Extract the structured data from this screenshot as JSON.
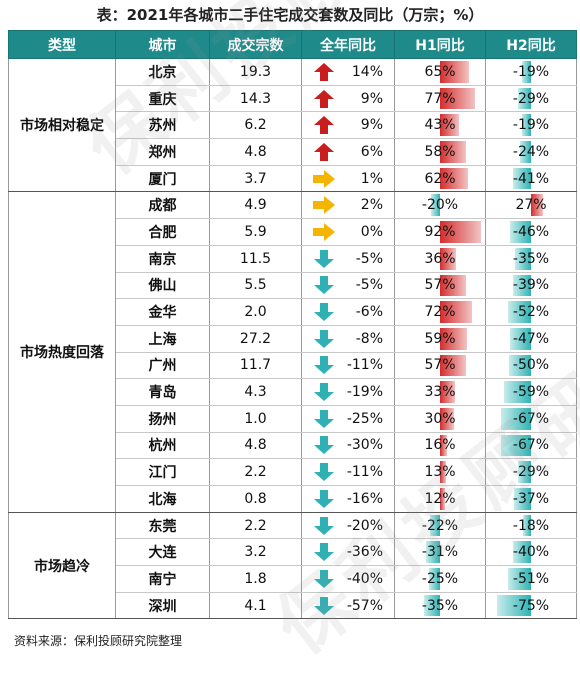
{
  "title": "表：2021年各城市二手住宅成交套数及同比（万宗；%）",
  "headers": [
    "类型",
    "城市",
    "成交宗数",
    "全年同比",
    "H1同比",
    "H2同比"
  ],
  "groups": [
    {
      "category": "市场相对稳定",
      "rows": [
        {
          "city": "北京",
          "volume": "19.3",
          "yoy": "14%",
          "yoy_icon": "up-arrow-icon",
          "h1": "65%",
          "h1_value": 65,
          "h2": "-19%",
          "h2_value": -19
        },
        {
          "city": "重庆",
          "volume": "14.3",
          "yoy": "9%",
          "yoy_icon": "up-arrow-icon",
          "h1": "77%",
          "h1_value": 77,
          "h2": "-29%",
          "h2_value": -29
        },
        {
          "city": "苏州",
          "volume": "6.2",
          "yoy": "9%",
          "yoy_icon": "up-arrow-icon",
          "h1": "43%",
          "h1_value": 43,
          "h2": "-19%",
          "h2_value": -19
        },
        {
          "city": "郑州",
          "volume": "4.8",
          "yoy": "6%",
          "yoy_icon": "up-arrow-icon",
          "h1": "58%",
          "h1_value": 58,
          "h2": "-24%",
          "h2_value": -24
        },
        {
          "city": "厦门",
          "volume": "3.7",
          "yoy": "1%",
          "yoy_icon": "right-arrow-icon",
          "h1": "62%",
          "h1_value": 62,
          "h2": "-41%",
          "h2_value": -41
        }
      ]
    },
    {
      "category": "市场热度回落",
      "rows": [
        {
          "city": "成都",
          "volume": "4.9",
          "yoy": "2%",
          "yoy_icon": "right-arrow-icon",
          "h1": "-20%",
          "h1_value": -20,
          "h2": "27%",
          "h2_value": 27
        },
        {
          "city": "合肥",
          "volume": "5.9",
          "yoy": "0%",
          "yoy_icon": "right-arrow-icon",
          "h1": "92%",
          "h1_value": 92,
          "h2": "-46%",
          "h2_value": -46
        },
        {
          "city": "南京",
          "volume": "11.5",
          "yoy": "-5%",
          "yoy_icon": "down-arrow-icon",
          "h1": "36%",
          "h1_value": 36,
          "h2": "-35%",
          "h2_value": -35
        },
        {
          "city": "佛山",
          "volume": "5.5",
          "yoy": "-5%",
          "yoy_icon": "down-arrow-icon",
          "h1": "57%",
          "h1_value": 57,
          "h2": "-39%",
          "h2_value": -39
        },
        {
          "city": "金华",
          "volume": "2.0",
          "yoy": "-6%",
          "yoy_icon": "down-arrow-icon",
          "h1": "72%",
          "h1_value": 72,
          "h2": "-52%",
          "h2_value": -52
        },
        {
          "city": "上海",
          "volume": "27.2",
          "yoy": "-8%",
          "yoy_icon": "down-arrow-icon",
          "h1": "59%",
          "h1_value": 59,
          "h2": "-47%",
          "h2_value": -47
        },
        {
          "city": "广州",
          "volume": "11.7",
          "yoy": "-11%",
          "yoy_icon": "down-arrow-icon",
          "h1": "57%",
          "h1_value": 57,
          "h2": "-50%",
          "h2_value": -50
        },
        {
          "city": "青岛",
          "volume": "4.3",
          "yoy": "-19%",
          "yoy_icon": "down-arrow-icon",
          "h1": "33%",
          "h1_value": 33,
          "h2": "-59%",
          "h2_value": -59
        },
        {
          "city": "扬州",
          "volume": "1.0",
          "yoy": "-25%",
          "yoy_icon": "down-arrow-icon",
          "h1": "30%",
          "h1_value": 30,
          "h2": "-67%",
          "h2_value": -67
        },
        {
          "city": "杭州",
          "volume": "4.8",
          "yoy": "-30%",
          "yoy_icon": "down-arrow-icon",
          "h1": "16%",
          "h1_value": 16,
          "h2": "-67%",
          "h2_value": -67
        },
        {
          "city": "江门",
          "volume": "2.2",
          "yoy": "-11%",
          "yoy_icon": "down-arrow-icon",
          "h1": "13%",
          "h1_value": 13,
          "h2": "-29%",
          "h2_value": -29
        },
        {
          "city": "北海",
          "volume": "0.8",
          "yoy": "-16%",
          "yoy_icon": "down-arrow-icon",
          "h1": "12%",
          "h1_value": 12,
          "h2": "-37%",
          "h2_value": -37
        }
      ]
    },
    {
      "category": "市场趋冷",
      "rows": [
        {
          "city": "东莞",
          "volume": "2.2",
          "yoy": "-20%",
          "yoy_icon": "down-arrow-icon",
          "h1": "-22%",
          "h1_value": -22,
          "h2": "-18%",
          "h2_value": -18
        },
        {
          "city": "大连",
          "volume": "3.2",
          "yoy": "-36%",
          "yoy_icon": "down-arrow-icon",
          "h1": "-31%",
          "h1_value": -31,
          "h2": "-40%",
          "h2_value": -40
        },
        {
          "city": "南宁",
          "volume": "1.8",
          "yoy": "-40%",
          "yoy_icon": "down-arrow-icon",
          "h1": "-25%",
          "h1_value": -25,
          "h2": "-51%",
          "h2_value": -51
        },
        {
          "city": "深圳",
          "volume": "4.1",
          "yoy": "-57%",
          "yoy_icon": "down-arrow-icon",
          "h1": "-35%",
          "h1_value": -35,
          "h2": "-75%",
          "h2_value": -75
        }
      ]
    }
  ],
  "source": "资料来源：保利投顾研究院整理",
  "watermark": "保利投顾研究院",
  "colors": {
    "header_bg": "#1f8a8a",
    "up_arrow": "#c81e1e",
    "right_arrow": "#f5b400",
    "down_arrow": "#2fb0b5",
    "positive_bar": "#d42c2c",
    "negative_bar": "#2eb3b3"
  }
}
